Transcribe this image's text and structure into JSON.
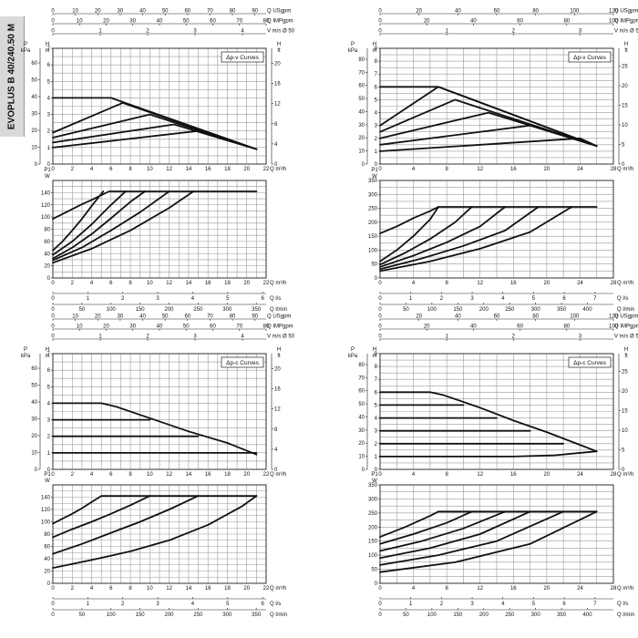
{
  "page": {
    "model_tab": "EVOPLUS B 40/240.50 M"
  },
  "chart_data": [
    {
      "type": "line",
      "name": "B40 Δp-v head",
      "curve_label": "Δp-v Curves",
      "x_unit": "Q m³/h",
      "y_left_unit_m": "H m",
      "y_left_unit_kpa": "P kPa",
      "y_right_unit": "H ft",
      "top_scales": [
        {
          "unit": "Q USgpm",
          "ticks": [
            0,
            10,
            20,
            30,
            40,
            50,
            60,
            70,
            80,
            90
          ],
          "max": 95
        },
        {
          "unit": "Q IMPgpm",
          "ticks": [
            0,
            10,
            20,
            30,
            40,
            50,
            60,
            70,
            80
          ],
          "max": 80
        },
        {
          "unit": "V m/s Ø 50",
          "ticks": [
            0,
            1,
            2,
            3,
            4
          ],
          "max": 4.5
        }
      ],
      "xlim": [
        0,
        22
      ],
      "x_ticks": [
        0,
        2,
        4,
        6,
        8,
        10,
        12,
        14,
        16,
        18,
        20,
        22
      ],
      "ylim_m": [
        0,
        7
      ],
      "y_ticks_m": [
        0,
        1,
        2,
        3,
        4,
        5,
        6,
        7
      ],
      "kpa_ticks": [
        0,
        10,
        20,
        30,
        40,
        50,
        60,
        70
      ],
      "ft_ticks": [
        0,
        4,
        8,
        12,
        16,
        20
      ],
      "series": [
        {
          "x": [
            0,
            6,
            21
          ],
          "y": [
            4,
            4,
            0.9
          ]
        },
        {
          "x": [
            0,
            7.2,
            21
          ],
          "y": [
            1.9,
            3.7,
            0.9
          ]
        },
        {
          "x": [
            0,
            10,
            21
          ],
          "y": [
            1.6,
            3.0,
            0.9
          ]
        },
        {
          "x": [
            0,
            12.5,
            21
          ],
          "y": [
            1.3,
            2.4,
            0.9
          ]
        },
        {
          "x": [
            0,
            15,
            21
          ],
          "y": [
            1.0,
            2.0,
            0.9
          ]
        }
      ]
    },
    {
      "type": "line",
      "name": "B40 Δp-v power",
      "y_unit": "P1 W",
      "x_unit": "Q m³/h",
      "xlim": [
        0,
        22
      ],
      "x_ticks": [
        0,
        2,
        4,
        6,
        8,
        10,
        12,
        14,
        16,
        18,
        20,
        22
      ],
      "ylim": [
        0,
        160
      ],
      "y_ticks": [
        0,
        20,
        40,
        60,
        80,
        100,
        120,
        140
      ],
      "bottom_scales": [
        {
          "unit": "Q l/s",
          "ticks": [
            0,
            1,
            2,
            3,
            4,
            5,
            6
          ],
          "max": 6.1
        },
        {
          "unit": "Q l/min",
          "ticks": [
            0,
            50,
            100,
            150,
            200,
            250,
            300,
            350
          ],
          "max": 367
        }
      ],
      "series": [
        {
          "x": [
            0,
            1,
            2,
            3,
            4,
            5,
            5.8,
            21
          ],
          "y": [
            97,
            105,
            113,
            121,
            128,
            136,
            142,
            142
          ]
        },
        {
          "x": [
            0,
            1,
            2,
            3,
            4,
            5.2
          ],
          "y": [
            45,
            60,
            78,
            97,
            118,
            142
          ]
        },
        {
          "x": [
            0,
            2,
            4,
            6,
            7.5
          ],
          "y": [
            38,
            60,
            88,
            120,
            142
          ]
        },
        {
          "x": [
            0,
            2,
            4,
            6,
            8,
            9.5
          ],
          "y": [
            32,
            50,
            72,
            98,
            125,
            142
          ]
        },
        {
          "x": [
            0,
            3,
            6,
            9,
            12
          ],
          "y": [
            29,
            50,
            78,
            108,
            142
          ]
        },
        {
          "x": [
            0,
            4,
            8,
            12,
            14.5
          ],
          "y": [
            25,
            48,
            78,
            115,
            142
          ]
        }
      ]
    },
    {
      "type": "line",
      "name": "B60 Δp-v head",
      "curve_label": "Δp-v Curves",
      "x_unit": "Q m³/h",
      "y_left_unit_m": "H m",
      "y_left_unit_kpa": "P kPa",
      "y_right_unit": "H ft",
      "top_scales": [
        {
          "unit": "Q USgpm",
          "ticks": [
            0,
            20,
            40,
            60,
            80,
            100,
            120
          ],
          "max": 120
        },
        {
          "unit": "Q IMPgpm",
          "ticks": [
            0,
            20,
            40,
            60,
            80,
            100
          ],
          "max": 100
        },
        {
          "unit": "V m/s Ø 50",
          "ticks": [
            0,
            1,
            2,
            3
          ],
          "max": 3.5
        }
      ],
      "xlim": [
        0,
        28
      ],
      "x_ticks": [
        0,
        4,
        8,
        12,
        16,
        20,
        24,
        28
      ],
      "ylim_m": [
        0,
        9
      ],
      "y_ticks_m": [
        0,
        1,
        2,
        3,
        4,
        5,
        6,
        7,
        8,
        9
      ],
      "kpa_ticks": [
        0,
        10,
        20,
        30,
        40,
        50,
        60,
        70,
        80
      ],
      "ft_ticks": [
        0,
        5,
        10,
        15,
        20,
        25
      ],
      "series": [
        {
          "x": [
            0,
            7,
            26
          ],
          "y": [
            6,
            6,
            1.4
          ]
        },
        {
          "x": [
            0,
            7,
            26
          ],
          "y": [
            3,
            6,
            1.4
          ]
        },
        {
          "x": [
            0,
            9,
            26
          ],
          "y": [
            2.5,
            5.0,
            1.4
          ]
        },
        {
          "x": [
            0,
            13,
            26
          ],
          "y": [
            2.0,
            4.0,
            1.4
          ]
        },
        {
          "x": [
            0,
            18,
            26
          ],
          "y": [
            1.5,
            3.0,
            1.4
          ]
        },
        {
          "x": [
            0,
            24,
            26
          ],
          "y": [
            1.0,
            2.0,
            1.4
          ]
        }
      ]
    },
    {
      "type": "line",
      "name": "B60 Δp-v power",
      "y_unit": "P1 W",
      "x_unit": "Q m³/h",
      "xlim": [
        0,
        28
      ],
      "x_ticks": [
        0,
        4,
        8,
        12,
        16,
        20,
        24,
        28
      ],
      "ylim": [
        0,
        350
      ],
      "y_ticks": [
        0,
        50,
        100,
        150,
        200,
        250,
        300,
        350
      ],
      "bottom_scales": [
        {
          "unit": "Q l/s",
          "ticks": [
            0,
            1,
            2,
            3,
            4,
            5,
            6,
            7
          ],
          "max": 7.6
        },
        {
          "unit": "Q l/min",
          "ticks": [
            0,
            50,
            100,
            150,
            200,
            250,
            300,
            350,
            400
          ],
          "max": 450
        }
      ],
      "series": [
        {
          "x": [
            0,
            2,
            4,
            6,
            7,
            26
          ],
          "y": [
            160,
            185,
            215,
            240,
            255,
            255
          ]
        },
        {
          "x": [
            0,
            2,
            4,
            6,
            7
          ],
          "y": [
            60,
            100,
            150,
            210,
            255
          ]
        },
        {
          "x": [
            0,
            3,
            6,
            9,
            11
          ],
          "y": [
            48,
            90,
            140,
            200,
            255
          ]
        },
        {
          "x": [
            0,
            4,
            8,
            12,
            15
          ],
          "y": [
            40,
            80,
            128,
            185,
            255
          ]
        },
        {
          "x": [
            0,
            5,
            10,
            15,
            19
          ],
          "y": [
            32,
            70,
            115,
            170,
            255
          ]
        },
        {
          "x": [
            0,
            6,
            12,
            18,
            23
          ],
          "y": [
            25,
            60,
            105,
            165,
            255
          ]
        }
      ]
    },
    {
      "type": "line",
      "name": "B40 Δp-c head",
      "curve_label": "Δp-c Curves",
      "x_unit": "Q m³/h",
      "y_left_unit_m": "H m",
      "y_left_unit_kpa": "P kPa",
      "y_right_unit": "H ft",
      "top_scales": [
        {
          "unit": "Q USgpm",
          "ticks": [
            0,
            10,
            20,
            30,
            40,
            50,
            60,
            70,
            80,
            90
          ],
          "max": 95
        },
        {
          "unit": "Q IMPgpm",
          "ticks": [
            0,
            10,
            20,
            30,
            40,
            50,
            60,
            70,
            80
          ],
          "max": 80
        },
        {
          "unit": "V m/s Ø 50",
          "ticks": [
            0,
            1,
            2,
            3,
            4
          ],
          "max": 4.5
        }
      ],
      "xlim": [
        0,
        22
      ],
      "x_ticks": [
        0,
        2,
        4,
        6,
        8,
        10,
        12,
        14,
        16,
        18,
        20,
        22
      ],
      "ylim_m": [
        0,
        7
      ],
      "y_ticks_m": [
        0,
        1,
        2,
        3,
        4,
        5,
        6,
        7
      ],
      "kpa_ticks": [
        0,
        10,
        20,
        30,
        40,
        50,
        60,
        70
      ],
      "ft_ticks": [
        0,
        4,
        8,
        12,
        16,
        20
      ],
      "series": [
        {
          "x": [
            0,
            5,
            6.5,
            10,
            14,
            18,
            21
          ],
          "y": [
            4,
            4,
            3.8,
            3.1,
            2.3,
            1.6,
            0.9
          ]
        },
        {
          "x": [
            0,
            10
          ],
          "y": [
            3,
            3
          ]
        },
        {
          "x": [
            0,
            15
          ],
          "y": [
            2,
            2
          ]
        },
        {
          "x": [
            0,
            21
          ],
          "y": [
            1,
            1
          ]
        }
      ]
    },
    {
      "type": "line",
      "name": "B40 Δp-c power",
      "y_unit": "P1 W",
      "x_unit": "Q m³/h",
      "xlim": [
        0,
        22
      ],
      "x_ticks": [
        0,
        2,
        4,
        6,
        8,
        10,
        12,
        14,
        16,
        18,
        20,
        22
      ],
      "ylim": [
        0,
        160
      ],
      "y_ticks": [
        0,
        20,
        40,
        60,
        80,
        100,
        120,
        140
      ],
      "bottom_scales": [
        {
          "unit": "Q l/s",
          "ticks": [
            0,
            1,
            2,
            3,
            4,
            5,
            6
          ],
          "max": 6.1
        },
        {
          "unit": "Q l/min",
          "ticks": [
            0,
            50,
            100,
            150,
            200,
            250,
            300,
            350
          ],
          "max": 367
        }
      ],
      "series": [
        {
          "x": [
            0,
            1,
            2,
            3,
            4,
            5,
            21
          ],
          "y": [
            97,
            105,
            113,
            122,
            132,
            142,
            142
          ]
        },
        {
          "x": [
            0,
            2,
            4,
            6,
            8,
            10
          ],
          "y": [
            75,
            88,
            100,
            113,
            127,
            142
          ]
        },
        {
          "x": [
            0,
            3,
            6,
            9,
            12,
            15
          ],
          "y": [
            48,
            64,
            82,
            100,
            120,
            142
          ]
        },
        {
          "x": [
            0,
            4,
            8,
            12,
            16,
            19.5,
            21
          ],
          "y": [
            25,
            38,
            52,
            70,
            95,
            125,
            142
          ]
        }
      ]
    },
    {
      "type": "line",
      "name": "B60 Δp-c head",
      "curve_label": "Δp-c Curves",
      "x_unit": "Q m³/h",
      "y_left_unit_m": "H m",
      "y_left_unit_kpa": "P kPa",
      "y_right_unit": "H ft",
      "top_scales": [
        {
          "unit": "Q USgpm",
          "ticks": [
            0,
            20,
            40,
            60,
            80,
            100,
            120
          ],
          "max": 120
        },
        {
          "unit": "Q IMPgpm",
          "ticks": [
            0,
            20,
            40,
            60,
            80,
            100
          ],
          "max": 100
        },
        {
          "unit": "V m/s Ø 50",
          "ticks": [
            0,
            1,
            2,
            3
          ],
          "max": 3.5
        }
      ],
      "xlim": [
        0,
        28
      ],
      "x_ticks": [
        0,
        4,
        8,
        12,
        16,
        20,
        24,
        28
      ],
      "ylim_m": [
        0,
        9
      ],
      "y_ticks_m": [
        0,
        1,
        2,
        3,
        4,
        5,
        6,
        7,
        8,
        9
      ],
      "kpa_ticks": [
        0,
        10,
        20,
        30,
        40,
        50,
        60,
        70,
        80
      ],
      "ft_ticks": [
        0,
        5,
        10,
        15,
        20,
        25
      ],
      "series": [
        {
          "x": [
            0,
            6,
            7.5,
            12,
            16,
            20,
            26
          ],
          "y": [
            6,
            6,
            5.8,
            4.8,
            3.8,
            2.9,
            1.4
          ]
        },
        {
          "x": [
            0,
            10
          ],
          "y": [
            5,
            5
          ]
        },
        {
          "x": [
            0,
            14
          ],
          "y": [
            4,
            4
          ]
        },
        {
          "x": [
            0,
            18
          ],
          "y": [
            3,
            3
          ]
        },
        {
          "x": [
            0,
            22
          ],
          "y": [
            2,
            2
          ]
        },
        {
          "x": [
            0,
            16,
            21,
            26
          ],
          "y": [
            1,
            1,
            1.1,
            1.4
          ]
        }
      ]
    },
    {
      "type": "line",
      "name": "B60 Δp-c power",
      "y_unit": "P1 W",
      "x_unit": "Q m³/h",
      "xlim": [
        0,
        28
      ],
      "x_ticks": [
        0,
        4,
        8,
        12,
        16,
        20,
        24,
        28
      ],
      "ylim": [
        0,
        350
      ],
      "y_ticks": [
        0,
        50,
        100,
        150,
        200,
        250,
        300,
        350
      ],
      "bottom_scales": [
        {
          "unit": "Q l/s",
          "ticks": [
            0,
            1,
            2,
            3,
            4,
            5,
            6,
            7
          ],
          "max": 7.6
        },
        {
          "unit": "Q l/min",
          "ticks": [
            0,
            50,
            100,
            150,
            200,
            250,
            300,
            350,
            400
          ],
          "max": 450
        }
      ],
      "series": [
        {
          "x": [
            0,
            3,
            6,
            7,
            26
          ],
          "y": [
            165,
            200,
            240,
            255,
            255
          ]
        },
        {
          "x": [
            0,
            4,
            8,
            11
          ],
          "y": [
            140,
            175,
            215,
            255
          ]
        },
        {
          "x": [
            0,
            5,
            10,
            15
          ],
          "y": [
            115,
            150,
            195,
            255
          ]
        },
        {
          "x": [
            0,
            6,
            12,
            18
          ],
          "y": [
            90,
            125,
            175,
            255
          ]
        },
        {
          "x": [
            0,
            7,
            14,
            22
          ],
          "y": [
            65,
            100,
            150,
            255
          ]
        },
        {
          "x": [
            0,
            9,
            18,
            26
          ],
          "y": [
            40,
            75,
            140,
            255
          ]
        }
      ]
    }
  ]
}
